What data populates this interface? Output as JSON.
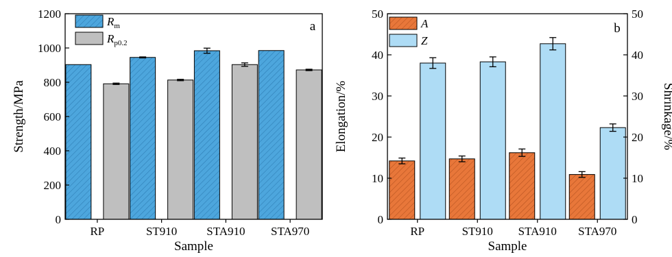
{
  "chart_data": [
    {
      "type": "bar",
      "panel_label": "a",
      "xlabel": "Sample",
      "ylabel": "Strength/MPa",
      "ylim": [
        0,
        1200
      ],
      "yticks": [
        0,
        200,
        400,
        600,
        800,
        1000,
        1200
      ],
      "categories": [
        "RP",
        "ST910",
        "STA910",
        "STA970"
      ],
      "series": [
        {
          "name": "R",
          "subscript": "m",
          "color": "#4da6dd",
          "hatch": true,
          "values": [
            903,
            945,
            984,
            985
          ],
          "errors": [
            0,
            3,
            15,
            0
          ]
        },
        {
          "name": "R",
          "subscript": "p0.2",
          "color": "#bfbfbf",
          "hatch": false,
          "values": [
            791,
            813,
            903,
            872
          ],
          "errors": [
            4,
            4,
            10,
            4
          ]
        }
      ],
      "legend_position": "top-left",
      "grid": false
    },
    {
      "type": "bar",
      "panel_label": "b",
      "xlabel": "Sample",
      "ylabel": "Elongation/%",
      "ylabel_right": "Shrinkage/%",
      "ylim": [
        0,
        50
      ],
      "yticks": [
        0,
        10,
        20,
        30,
        40,
        50
      ],
      "categories": [
        "RP",
        "ST910",
        "STA910",
        "STA970"
      ],
      "series": [
        {
          "name": "A",
          "color": "#e8773a",
          "hatch": true,
          "values": [
            14.2,
            14.7,
            16.2,
            10.9
          ],
          "errors": [
            0.7,
            0.7,
            0.9,
            0.7
          ]
        },
        {
          "name": "Z",
          "color": "#aedcf5",
          "hatch": false,
          "values": [
            38.0,
            38.3,
            42.7,
            22.3
          ],
          "errors": [
            1.3,
            1.2,
            1.5,
            0.9
          ]
        }
      ],
      "legend_position": "top-left",
      "grid": false
    }
  ]
}
